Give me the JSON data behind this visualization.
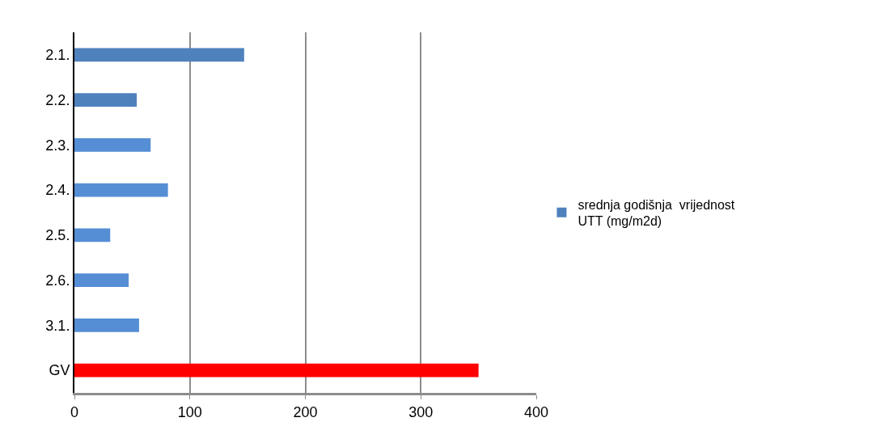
{
  "chart_data": {
    "type": "bar",
    "orientation": "horizontal",
    "categories": [
      "2.1.",
      "2.2.",
      "2.3.",
      "2.4.",
      "2.5.",
      "2.6.",
      "3.1.",
      "GV"
    ],
    "series": [
      {
        "name": "srednja godišnja  vrijednost UTT (mg/m2d)",
        "values": [
          147,
          54,
          66,
          81,
          31,
          47,
          56,
          350
        ],
        "colors": [
          "#4f81bd",
          "#4f81bd",
          "#558ed5",
          "#558ed5",
          "#558ed5",
          "#558ed5",
          "#558ed5",
          "#ff0000"
        ]
      }
    ],
    "xlim": [
      0,
      400
    ],
    "xticks": [
      0,
      100,
      200,
      300,
      400
    ],
    "grid": "x",
    "legend": "right"
  }
}
